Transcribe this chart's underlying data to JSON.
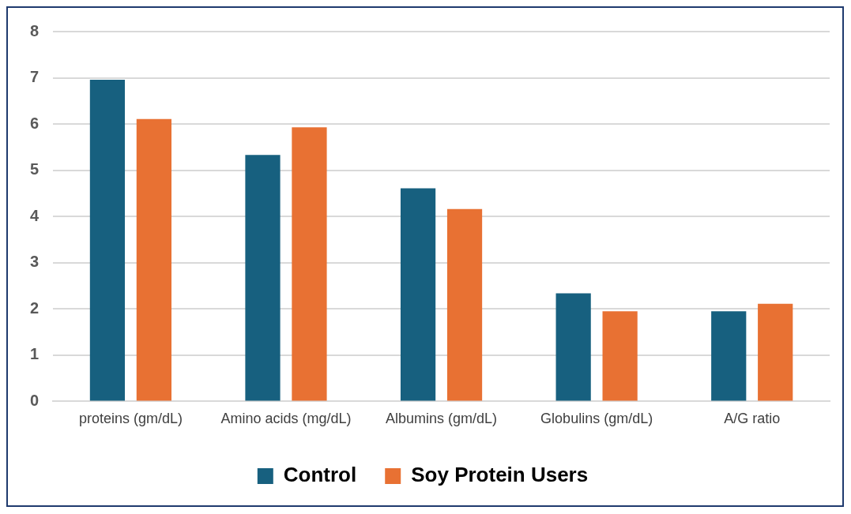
{
  "chart_data": {
    "type": "bar",
    "categories": [
      "proteins (gm/dL)",
      "Amino acids (mg/dL)",
      "Albumins (gm/dL)",
      "Globulins (gm/dL)",
      "A/G ratio"
    ],
    "series": [
      {
        "name": "Control",
        "color": "#17607f",
        "values": [
          6.96,
          5.33,
          4.61,
          2.34,
          1.95
        ]
      },
      {
        "name": "Soy Protein Users",
        "color": "#e87133",
        "values": [
          6.11,
          5.93,
          4.16,
          1.95,
          2.11
        ]
      }
    ],
    "ylim": [
      0,
      8
    ],
    "yticks": [
      0,
      1,
      2,
      3,
      4,
      5,
      6,
      7,
      8
    ],
    "grid": "y",
    "legend": "bottom"
  }
}
